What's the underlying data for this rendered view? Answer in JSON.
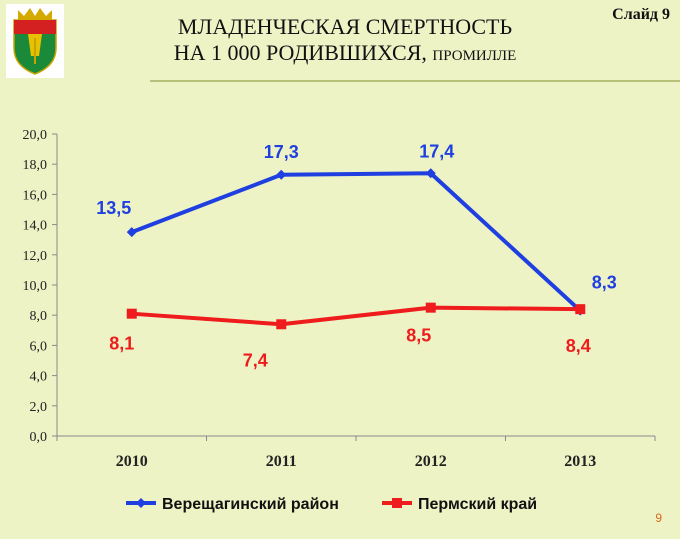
{
  "header": {
    "title_line1": "МЛАДЕНЧЕСКАЯ СМЕРТНОСТЬ",
    "title_line2_main": "НА 1 000 РОДИВШИХСЯ, ",
    "title_line2_small": "ПРОМИЛЛЕ",
    "slide_label": "Слайд 9"
  },
  "footer": {
    "page_number": "9"
  },
  "colors": {
    "background": "#eef3c6",
    "series1": "#1f3fe0",
    "series2": "#ee1c1c"
  },
  "chart_data": {
    "type": "line",
    "title": "МЛАДЕНЧЕСКАЯ СМЕРТНОСТЬ НА 1 000 РОДИВШИХСЯ, ПРОМИЛЛЕ",
    "categories": [
      "2010",
      "2011",
      "2012",
      "2013"
    ],
    "y_ticks": [
      "0,0",
      "2,0",
      "4,0",
      "6,0",
      "8,0",
      "10,0",
      "12,0",
      "14,0",
      "16,0",
      "18,0",
      "20,0"
    ],
    "ylim": [
      0,
      20
    ],
    "grid": false,
    "legend_position": "bottom",
    "series": [
      {
        "name": "Верещагинский район",
        "values": [
          13.5,
          17.3,
          17.4,
          8.3
        ],
        "labels": [
          "13,5",
          "17,3",
          "17,4",
          "8,3"
        ],
        "marker": "diamond"
      },
      {
        "name": "Пермский край",
        "values": [
          8.1,
          7.4,
          8.5,
          8.4
        ],
        "labels": [
          "8,1",
          "7,4",
          "8,5",
          "8,4"
        ],
        "marker": "square"
      }
    ]
  }
}
